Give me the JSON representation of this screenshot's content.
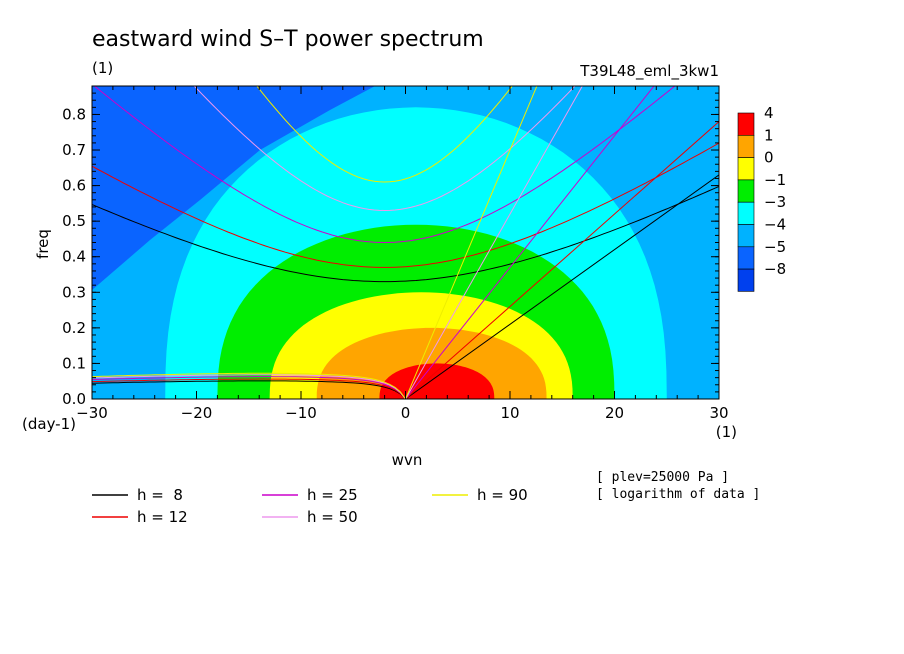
{
  "chart_data": {
    "type": "heatmap",
    "title": "eastward wind S–T power spectrum",
    "subtitle": "(1)",
    "run_label": "T39L48_eml_3kw1",
    "xlabel": "wvn",
    "ylabel": "freq",
    "x_unit": "(1)",
    "y_unit": "(day-1)",
    "xlim": [
      -30,
      30
    ],
    "ylim": [
      0,
      0.88
    ],
    "x_ticks": [
      -30,
      -20,
      -10,
      0,
      10,
      20,
      30
    ],
    "x_tick_labels": [
      "−30",
      "−20",
      "−10",
      "0",
      "10",
      "20",
      "30"
    ],
    "y_ticks": [
      0.0,
      0.1,
      0.2,
      0.3,
      0.4,
      0.5,
      0.6,
      0.7,
      0.8
    ],
    "y_tick_labels": [
      "0.0",
      "0.1",
      "0.2",
      "0.3",
      "0.4",
      "0.5",
      "0.6",
      "0.7",
      "0.8"
    ],
    "colorbar": {
      "labels": [
        "4",
        "1",
        "0",
        "−1",
        "−3",
        "−4",
        "−5",
        "−8"
      ],
      "colors": [
        "#ff0000",
        "#ffa500",
        "#ffff00",
        "#00ee00",
        "#00ffff",
        "#00b2ff",
        "#0a64ff",
        "#0040ee"
      ]
    },
    "contours": [
      {
        "level": 1,
        "rx": 5.5,
        "ry": 0.1
      },
      {
        "level": 0,
        "rx": 11,
        "ry": 0.2
      },
      {
        "level": -1,
        "rx": 14.5,
        "ry": 0.3
      },
      {
        "level": -3,
        "rx": 19,
        "ry": 0.49
      },
      {
        "level": -4,
        "rx": 24,
        "ry": 0.82
      }
    ],
    "dispersion_curves": {
      "legend": [
        {
          "label": "h =  8",
          "h": 8,
          "color": "#000000"
        },
        {
          "label": "h = 12",
          "h": 12,
          "color": "#ee0000"
        },
        {
          "label": "h = 25",
          "h": 25,
          "color": "#cc00cc"
        },
        {
          "label": "h = 50",
          "h": 50,
          "color": "#ee99ee"
        },
        {
          "label": "h = 90",
          "h": 90,
          "color": "#eeee00"
        }
      ],
      "ig_min_freq": [
        0.33,
        0.37,
        0.44,
        0.53,
        0.61
      ],
      "kelvin_speed": [
        0.021,
        0.026,
        0.037,
        0.052,
        0.07
      ],
      "rossby_max_freq": [
        0.06,
        0.066,
        0.074,
        0.08,
        0.085
      ]
    },
    "notes": [
      "[ plev=25000 Pa ]",
      "[ logarithm of data ]"
    ]
  }
}
